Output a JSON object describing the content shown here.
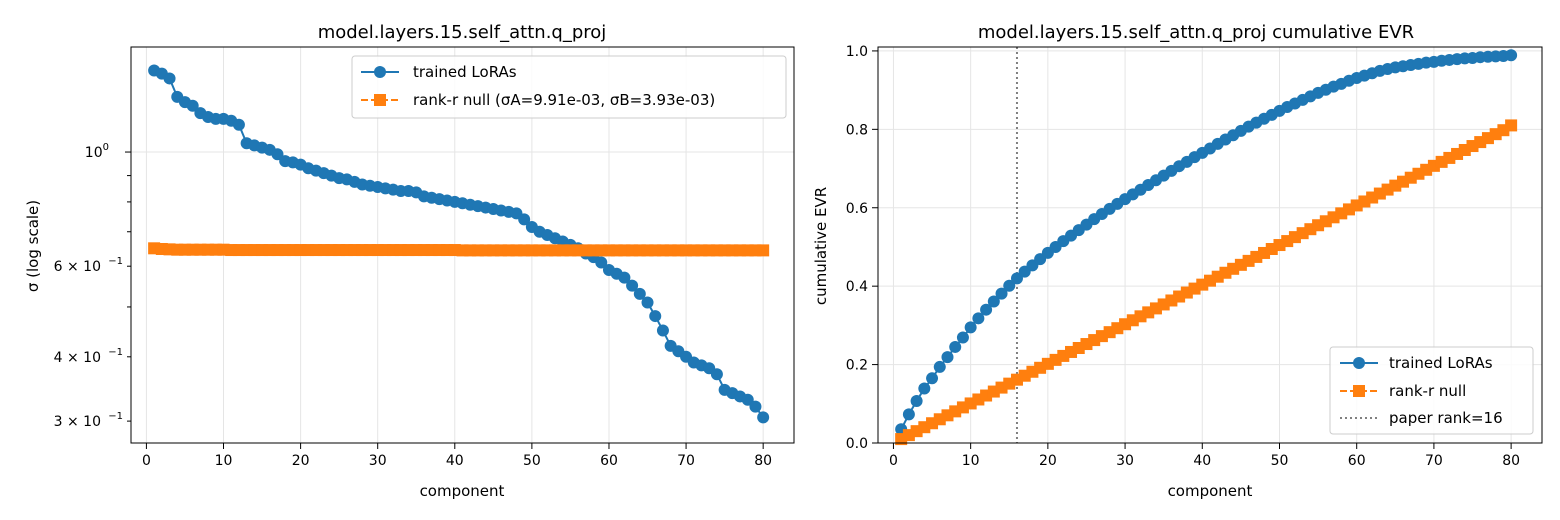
{
  "colors": {
    "trained": "#1f77b4",
    "null": "#ff7f0e",
    "grid": "#e5e5e5",
    "vline": "#808080"
  },
  "chart_data": [
    {
      "type": "line",
      "yscale": "log",
      "title": "model.layers.15.self_attn.q_proj",
      "xlabel": "component",
      "ylabel": "σ (log scale)",
      "xlim": [
        -2,
        84
      ],
      "ylim": [
        0.272,
        1.6
      ],
      "xticks": [
        0,
        10,
        20,
        30,
        40,
        50,
        60,
        70,
        80
      ],
      "xtick_labels": [
        "0",
        "10",
        "20",
        "30",
        "40",
        "50",
        "60",
        "70",
        "80"
      ],
      "yticks_major": [
        1.0
      ],
      "ytick_major_labels": [
        "10",
        "0"
      ],
      "yticks_minor_labeled": [
        0.3,
        0.4,
        0.6
      ],
      "ytick_minor_labels": [
        "3 × 10",
        "4 × 10",
        "6 × 10"
      ],
      "ytick_minor_exp": "−1",
      "yticks_minor_unlabeled": [
        0.5,
        0.7,
        0.8,
        0.9
      ],
      "legend_position": "top-right",
      "series": [
        {
          "name": "trained LoRAs",
          "style": "solid-circle",
          "x": [
            1,
            2,
            3,
            4,
            5,
            6,
            7,
            8,
            9,
            10,
            11,
            12,
            13,
            14,
            15,
            16,
            17,
            18,
            19,
            20,
            21,
            22,
            23,
            24,
            25,
            26,
            27,
            28,
            29,
            30,
            31,
            32,
            33,
            34,
            35,
            36,
            37,
            38,
            39,
            40,
            41,
            42,
            43,
            44,
            45,
            46,
            47,
            48,
            49,
            50,
            51,
            52,
            53,
            54,
            55,
            56,
            57,
            58,
            59,
            60,
            61,
            62,
            63,
            64,
            65,
            66,
            67,
            68,
            69,
            70,
            71,
            72,
            73,
            74,
            75,
            76,
            77,
            78,
            79,
            80
          ],
          "values": [
            1.44,
            1.42,
            1.39,
            1.28,
            1.25,
            1.23,
            1.19,
            1.17,
            1.16,
            1.16,
            1.15,
            1.13,
            1.04,
            1.03,
            1.02,
            1.01,
            0.99,
            0.96,
            0.955,
            0.945,
            0.93,
            0.92,
            0.91,
            0.9,
            0.89,
            0.885,
            0.875,
            0.865,
            0.86,
            0.855,
            0.85,
            0.845,
            0.84,
            0.84,
            0.835,
            0.82,
            0.815,
            0.81,
            0.805,
            0.8,
            0.795,
            0.79,
            0.785,
            0.78,
            0.775,
            0.77,
            0.765,
            0.76,
            0.74,
            0.715,
            0.7,
            0.69,
            0.68,
            0.67,
            0.66,
            0.65,
            0.635,
            0.625,
            0.61,
            0.59,
            0.58,
            0.57,
            0.55,
            0.53,
            0.51,
            0.48,
            0.45,
            0.42,
            0.41,
            0.4,
            0.39,
            0.385,
            0.38,
            0.37,
            0.345,
            0.34,
            0.335,
            0.33,
            0.32,
            0.305
          ]
        },
        {
          "name": "rank-r null (σA=9.91e-03, σB=3.93e-03)",
          "style": "dashed-square",
          "x": [
            1,
            2,
            3,
            4,
            5,
            6,
            7,
            8,
            9,
            10,
            11,
            12,
            13,
            14,
            15,
            16,
            17,
            18,
            19,
            20,
            21,
            22,
            23,
            24,
            25,
            26,
            27,
            28,
            29,
            30,
            31,
            32,
            33,
            34,
            35,
            36,
            37,
            38,
            39,
            40,
            41,
            42,
            43,
            44,
            45,
            46,
            47,
            48,
            49,
            50,
            51,
            52,
            53,
            54,
            55,
            56,
            57,
            58,
            59,
            60,
            61,
            62,
            63,
            64,
            65,
            66,
            67,
            68,
            69,
            70,
            71,
            72,
            73,
            74,
            75,
            76,
            77,
            78,
            79,
            80
          ],
          "values": [
            0.65,
            0.648,
            0.647,
            0.646,
            0.646,
            0.646,
            0.646,
            0.646,
            0.646,
            0.646,
            0.645,
            0.645,
            0.645,
            0.645,
            0.645,
            0.645,
            0.645,
            0.645,
            0.645,
            0.645,
            0.645,
            0.645,
            0.645,
            0.645,
            0.645,
            0.645,
            0.645,
            0.645,
            0.645,
            0.645,
            0.645,
            0.645,
            0.645,
            0.645,
            0.645,
            0.645,
            0.645,
            0.645,
            0.645,
            0.645,
            0.644,
            0.644,
            0.644,
            0.644,
            0.644,
            0.644,
            0.644,
            0.644,
            0.644,
            0.644,
            0.644,
            0.644,
            0.644,
            0.644,
            0.644,
            0.644,
            0.644,
            0.644,
            0.644,
            0.644,
            0.644,
            0.644,
            0.644,
            0.644,
            0.644,
            0.644,
            0.644,
            0.644,
            0.644,
            0.644,
            0.644,
            0.644,
            0.644,
            0.644,
            0.644,
            0.644,
            0.644,
            0.644,
            0.644,
            0.644
          ]
        }
      ]
    },
    {
      "type": "line",
      "yscale": "linear",
      "title": "model.layers.15.self_attn.q_proj  cumulative EVR",
      "xlabel": "component",
      "ylabel": "cumulative EVR",
      "xlim": [
        -2,
        84
      ],
      "ylim": [
        0.0,
        1.01
      ],
      "xticks": [
        0,
        10,
        20,
        30,
        40,
        50,
        60,
        70,
        80
      ],
      "xtick_labels": [
        "0",
        "10",
        "20",
        "30",
        "40",
        "50",
        "60",
        "70",
        "80"
      ],
      "yticks": [
        0.0,
        0.2,
        0.4,
        0.6,
        0.8,
        1.0
      ],
      "ytick_labels": [
        "0.0",
        "0.2",
        "0.4",
        "0.6",
        "0.8",
        "1.0"
      ],
      "vline": {
        "x": 16,
        "label": "paper rank=16"
      },
      "legend_position": "bottom-right",
      "series": [
        {
          "name": "trained LoRAs",
          "style": "solid-circle",
          "x": [
            1,
            2,
            3,
            4,
            5,
            6,
            7,
            8,
            9,
            10,
            11,
            12,
            13,
            14,
            15,
            16,
            17,
            18,
            19,
            20,
            21,
            22,
            23,
            24,
            25,
            26,
            27,
            28,
            29,
            30,
            31,
            32,
            33,
            34,
            35,
            36,
            37,
            38,
            39,
            40,
            41,
            42,
            43,
            44,
            45,
            46,
            47,
            48,
            49,
            50,
            51,
            52,
            53,
            54,
            55,
            56,
            57,
            58,
            59,
            60,
            61,
            62,
            63,
            64,
            65,
            66,
            67,
            68,
            69,
            70,
            71,
            72,
            73,
            74,
            75,
            76,
            77,
            78,
            79,
            80
          ],
          "values": [
            0.035,
            0.073,
            0.107,
            0.139,
            0.165,
            0.194,
            0.219,
            0.245,
            0.269,
            0.295,
            0.318,
            0.34,
            0.361,
            0.381,
            0.401,
            0.42,
            0.437,
            0.453,
            0.469,
            0.485,
            0.5,
            0.515,
            0.529,
            0.543,
            0.557,
            0.571,
            0.584,
            0.597,
            0.61,
            0.622,
            0.634,
            0.646,
            0.658,
            0.67,
            0.682,
            0.694,
            0.706,
            0.717,
            0.729,
            0.74,
            0.751,
            0.763,
            0.774,
            0.785,
            0.796,
            0.807,
            0.817,
            0.827,
            0.837,
            0.847,
            0.857,
            0.866,
            0.875,
            0.884,
            0.893,
            0.901,
            0.909,
            0.916,
            0.924,
            0.931,
            0.937,
            0.943,
            0.949,
            0.954,
            0.958,
            0.961,
            0.964,
            0.967,
            0.97,
            0.972,
            0.975,
            0.977,
            0.979,
            0.981,
            0.982,
            0.984,
            0.985,
            0.986,
            0.987,
            0.989
          ]
        },
        {
          "name": "rank-r null",
          "style": "dashed-square",
          "x": [
            1,
            2,
            3,
            4,
            5,
            6,
            7,
            8,
            9,
            10,
            11,
            12,
            13,
            14,
            15,
            16,
            17,
            18,
            19,
            20,
            21,
            22,
            23,
            24,
            25,
            26,
            27,
            28,
            29,
            30,
            31,
            32,
            33,
            34,
            35,
            36,
            37,
            38,
            39,
            40,
            41,
            42,
            43,
            44,
            45,
            46,
            47,
            48,
            49,
            50,
            51,
            52,
            53,
            54,
            55,
            56,
            57,
            58,
            59,
            60,
            61,
            62,
            63,
            64,
            65,
            66,
            67,
            68,
            69,
            70,
            71,
            72,
            73,
            74,
            75,
            76,
            77,
            78,
            79,
            80
          ],
          "values": [
            0.01,
            0.0201,
            0.0302,
            0.0403,
            0.0504,
            0.0605,
            0.0706,
            0.0807,
            0.0908,
            0.1009,
            0.111,
            0.1211,
            0.1312,
            0.1413,
            0.1514,
            0.1615,
            0.1716,
            0.1817,
            0.1918,
            0.2019,
            0.212,
            0.2221,
            0.2322,
            0.2423,
            0.2524,
            0.2625,
            0.2726,
            0.2827,
            0.2928,
            0.3029,
            0.313,
            0.3231,
            0.3332,
            0.3433,
            0.3534,
            0.3635,
            0.3736,
            0.3837,
            0.3938,
            0.4039,
            0.414,
            0.4241,
            0.4342,
            0.4443,
            0.4544,
            0.4645,
            0.4746,
            0.4847,
            0.4948,
            0.5049,
            0.515,
            0.5251,
            0.5352,
            0.5453,
            0.5554,
            0.5655,
            0.5756,
            0.5857,
            0.5958,
            0.6059,
            0.616,
            0.6261,
            0.6362,
            0.6463,
            0.6564,
            0.6665,
            0.6766,
            0.6867,
            0.6968,
            0.7069,
            0.717,
            0.7271,
            0.7372,
            0.7473,
            0.7574,
            0.7675,
            0.7776,
            0.7877,
            0.7978,
            0.81
          ]
        }
      ]
    }
  ]
}
